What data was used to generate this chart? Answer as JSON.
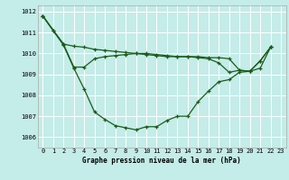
{
  "title": "Graphe pression niveau de la mer (hPa)",
  "bg_color": "#c4ece8",
  "grid_color": "#ffffff",
  "line_color": "#1a5c1a",
  "xlim": [
    -0.5,
    23.5
  ],
  "ylim": [
    1005.5,
    1012.3
  ],
  "yticks": [
    1006,
    1007,
    1008,
    1009,
    1010,
    1011,
    1012
  ],
  "xticks": [
    0,
    1,
    2,
    3,
    4,
    5,
    6,
    7,
    8,
    9,
    10,
    11,
    12,
    13,
    14,
    15,
    16,
    17,
    18,
    19,
    20,
    21,
    22,
    23
  ],
  "series1_x": [
    0,
    1,
    2,
    3,
    4,
    5,
    6,
    7,
    8,
    9,
    10,
    11,
    12,
    13,
    14,
    15,
    16,
    17,
    18,
    19,
    20,
    21,
    22
  ],
  "series1_y": [
    1011.8,
    1011.1,
    1010.4,
    1009.3,
    1008.3,
    1007.2,
    1006.85,
    1006.55,
    1006.45,
    1006.35,
    1006.5,
    1006.5,
    1006.8,
    1007.0,
    1007.0,
    1007.7,
    1008.2,
    1008.65,
    1008.75,
    1009.1,
    1009.15,
    1009.65,
    1010.3
  ],
  "series2_x": [
    0,
    1,
    2,
    3,
    4,
    5,
    6,
    7,
    8,
    9,
    10,
    11,
    12,
    13,
    14,
    15,
    16,
    17,
    18,
    19,
    20,
    21,
    22
  ],
  "series2_y": [
    1011.8,
    1011.1,
    1010.45,
    1010.35,
    1010.3,
    1010.2,
    1010.15,
    1010.1,
    1010.05,
    1010.0,
    1009.95,
    1009.9,
    1009.85,
    1009.85,
    1009.85,
    1009.85,
    1009.8,
    1009.8,
    1009.75,
    1009.2,
    1009.15,
    1009.3,
    1010.3
  ],
  "series3_x": [
    0,
    2,
    3,
    4,
    5,
    6,
    7,
    8,
    9,
    10,
    11,
    12,
    13,
    14,
    15,
    16,
    17,
    18,
    19,
    20,
    21,
    22
  ],
  "series3_y": [
    1011.8,
    1010.45,
    1009.35,
    1009.35,
    1009.75,
    1009.85,
    1009.9,
    1009.95,
    1010.0,
    1010.0,
    1009.95,
    1009.9,
    1009.85,
    1009.85,
    1009.8,
    1009.75,
    1009.55,
    1009.1,
    1009.2,
    1009.15,
    1009.65,
    1010.3
  ],
  "xlabel_fontsize": 5.5,
  "tick_fontsize": 5.0
}
